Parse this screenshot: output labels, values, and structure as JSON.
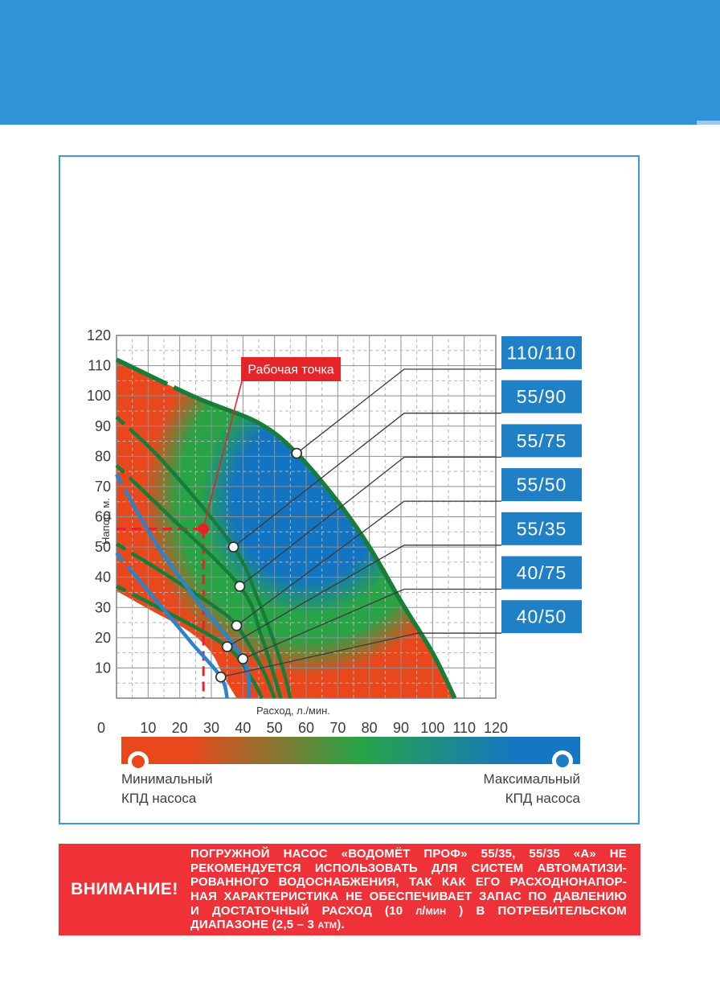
{
  "header": {
    "color": "#3093d7",
    "notch_color": "#9cc9ec"
  },
  "panel": {
    "border_color": "#3e97d8"
  },
  "chart_data": {
    "type": "line",
    "x_label": "Расход, л./мин.",
    "y_label": "Напор, м.",
    "xlim": [
      0,
      120
    ],
    "ylim": [
      0,
      120
    ],
    "x_ticks": [
      0,
      10,
      20,
      30,
      40,
      50,
      60,
      70,
      80,
      90,
      100,
      110,
      120
    ],
    "y_ticks": [
      120,
      110,
      100,
      90,
      80,
      70,
      60,
      50,
      40,
      30,
      20,
      10
    ],
    "grid": {
      "major_step": 10,
      "minor_step": 5
    },
    "series": [
      {
        "name": "110/110",
        "color": "#177d38",
        "points": [
          [
            0,
            112
          ],
          [
            25,
            99.5
          ],
          [
            45,
            91
          ],
          [
            57,
            81
          ],
          [
            70,
            65
          ],
          [
            80,
            50
          ],
          [
            90,
            32
          ],
          [
            100,
            15
          ],
          [
            107,
            0
          ]
        ],
        "duty_point": [
          57,
          81
        ]
      },
      {
        "name": "55/90",
        "color": "#177d38",
        "points": [
          [
            0,
            93
          ],
          [
            15,
            78
          ],
          [
            37,
            50
          ],
          [
            45,
            32
          ],
          [
            52,
            12
          ],
          [
            55,
            0
          ]
        ],
        "duty_point": [
          37,
          50
        ]
      },
      {
        "name": "55/75",
        "color": "#177d38",
        "points": [
          [
            0,
            77
          ],
          [
            15,
            62
          ],
          [
            39,
            37
          ],
          [
            46,
            20
          ],
          [
            52,
            0
          ]
        ],
        "duty_point": [
          39,
          37
        ]
      },
      {
        "name": "55/50",
        "color": "#177d38",
        "points": [
          [
            0,
            51
          ],
          [
            14,
            42
          ],
          [
            30,
            31
          ],
          [
            38,
            24
          ],
          [
            46,
            10
          ],
          [
            50,
            0
          ]
        ],
        "duty_point": [
          38,
          24
        ]
      },
      {
        "name": "55/35",
        "color": "#177d38",
        "points": [
          [
            0,
            37
          ],
          [
            15,
            29
          ],
          [
            35,
            17
          ],
          [
            43,
            6
          ],
          [
            46,
            0
          ]
        ],
        "duty_point": [
          35,
          17
        ]
      },
      {
        "name": "40/75",
        "color": "#2b83cb",
        "points": [
          [
            0,
            74
          ],
          [
            12,
            52
          ],
          [
            25,
            33
          ],
          [
            40,
            13
          ],
          [
            42,
            0
          ]
        ],
        "duty_point": [
          40,
          13
        ]
      },
      {
        "name": "40/50",
        "color": "#2b83cb",
        "points": [
          [
            0,
            48
          ],
          [
            12,
            33
          ],
          [
            24,
            18
          ],
          [
            33,
            7
          ],
          [
            35,
            0
          ]
        ],
        "duty_point": [
          33,
          7
        ]
      }
    ],
    "efficiency_region": {
      "envelope": [
        [
          0,
          112
        ],
        [
          25,
          99.5
        ],
        [
          45,
          91
        ],
        [
          57,
          81
        ],
        [
          70,
          65
        ],
        [
          80,
          50
        ],
        [
          90,
          32
        ],
        [
          100,
          15
        ],
        [
          107,
          0
        ]
      ],
      "lower_boundary": [
        [
          0,
          35.5
        ],
        [
          11,
          29
        ],
        [
          23,
          22
        ],
        [
          30,
          15
        ],
        [
          34,
          7
        ],
        [
          38,
          0
        ]
      ],
      "colors": {
        "max_efficiency": "#1374c1",
        "mid_efficiency": "#28a447",
        "min_efficiency": "#e8481c"
      }
    },
    "working_point": {
      "label": "Рабочая точка",
      "x": 27.5,
      "y": 56,
      "color": "#e5242a"
    },
    "legend_bar": {
      "min_line1": "Минимальный",
      "min_line2": "КПД насоса",
      "max_line1": "Максимальный",
      "max_line2": "КПД насоса"
    },
    "model_box_color": "#1f80c6"
  },
  "warning": {
    "bg": "#ee3237",
    "title": "ВНИМАНИЕ!",
    "lines": [
      "ПОГРУЖНОЙ НАСОС «ВОДОМЁТ ПРОФ» 55/35, 55/35 «А» НЕ",
      "РЕКОМЕНДУЕТСЯ ИСПОЛЬЗОВАТЬ ДЛЯ СИСТЕМ АВТОМАТИЗИ-",
      "РОВАННОГО ВОДОСНАБЖЕНИЯ, ТАК КАК ЕГО РАСХОДНОНАПОР-",
      "НАЯ ХАРАКТЕРИСТИКА НЕ ОБЕСПЕЧИВАЕТ ЗАПАС ПО ДАВЛЕНИЮ",
      "И ДОСТАТОЧНЫЙ РАСХОД (10 л/мин ) В ПОТРЕБИТЕЛЬСКОМ",
      "ДИАПАЗОНЕ (2,5 – 3 атм)."
    ]
  }
}
